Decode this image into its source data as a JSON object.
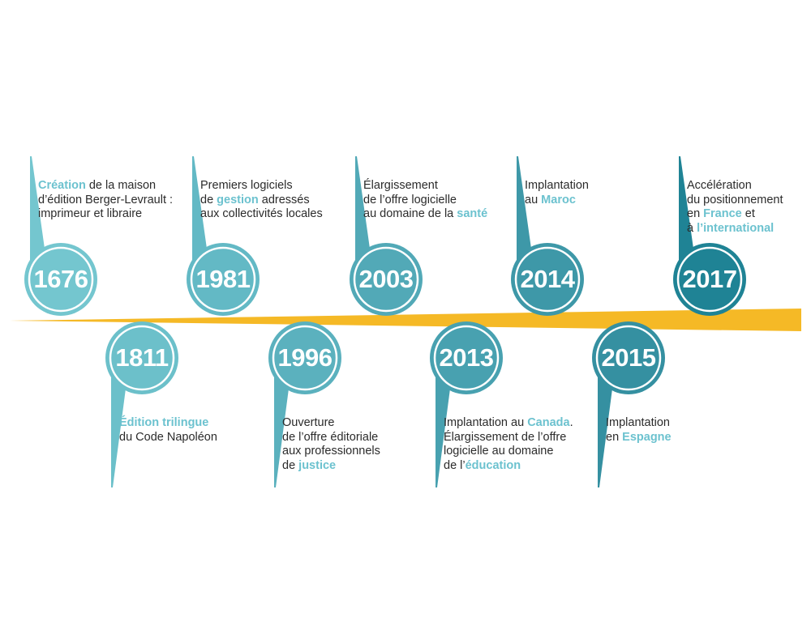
{
  "colors": {
    "band": "#f5b926",
    "label_text": "#2b2b2b",
    "highlight": "#6cc2cf"
  },
  "milestones": [
    {
      "year": "1676",
      "position": "above",
      "color": "#74c6cf",
      "lines": [
        [
          {
            "t": "Création",
            "hl": true
          },
          {
            "t": " de la maison"
          }
        ],
        [
          {
            "t": "d’édition Berger-Levrault :"
          }
        ],
        [
          {
            "t": "imprimeur et libraire"
          }
        ]
      ]
    },
    {
      "year": "1811",
      "position": "below",
      "color": "#6cc0ca",
      "lines": [
        [
          {
            "t": "Édition trilingue",
            "hl": true
          }
        ],
        [
          {
            "t": "du Code Napoléon"
          }
        ]
      ]
    },
    {
      "year": "1981",
      "position": "above",
      "color": "#63b9c5",
      "lines": [
        [
          {
            "t": "Premiers logiciels"
          }
        ],
        [
          {
            "t": "de "
          },
          {
            "t": "gestion",
            "hl": true
          },
          {
            "t": " adressés"
          }
        ],
        [
          {
            "t": "aux collectivités locales"
          }
        ]
      ]
    },
    {
      "year": "1996",
      "position": "below",
      "color": "#5bb1be",
      "lines": [
        [
          {
            "t": "Ouverture"
          }
        ],
        [
          {
            "t": "de l’offre éditoriale"
          }
        ],
        [
          {
            "t": "aux professionnels"
          }
        ],
        [
          {
            "t": "de "
          },
          {
            "t": "justice",
            "hl": true
          }
        ]
      ]
    },
    {
      "year": "2003",
      "position": "above",
      "color": "#52a9b7",
      "lines": [
        [
          {
            "t": "Élargissement"
          }
        ],
        [
          {
            "t": "de l’offre logicielle"
          }
        ],
        [
          {
            "t": "au domaine de la "
          },
          {
            "t": "santé",
            "hl": true
          }
        ]
      ]
    },
    {
      "year": "2013",
      "position": "below",
      "color": "#48a1b0",
      "lines": [
        [
          {
            "t": "Implantation au "
          },
          {
            "t": "Canada",
            "hl": true
          },
          {
            "t": "."
          }
        ],
        [
          {
            "t": "Élargissement de l’offre"
          }
        ],
        [
          {
            "t": "logicielle au domaine"
          }
        ],
        [
          {
            "t": "de l’"
          },
          {
            "t": "éducation",
            "hl": true
          }
        ]
      ]
    },
    {
      "year": "2014",
      "position": "above",
      "color": "#3e98a8",
      "lines": [
        [
          {
            "t": "Implantation"
          }
        ],
        [
          {
            "t": "au "
          },
          {
            "t": "Maroc",
            "hl": true
          }
        ]
      ]
    },
    {
      "year": "2015",
      "position": "below",
      "color": "#3590a1",
      "lines": [
        [
          {
            "t": "Implantation"
          }
        ],
        [
          {
            "t": "en "
          },
          {
            "t": "Espagne",
            "hl": true
          }
        ]
      ]
    },
    {
      "year": "2017",
      "position": "above",
      "color": "#1f8395",
      "lines": [
        [
          {
            "t": "Accélération"
          }
        ],
        [
          {
            "t": "du positionnement"
          }
        ],
        [
          {
            "t": "en "
          },
          {
            "t": "France",
            "hl": true
          },
          {
            "t": " et"
          }
        ],
        [
          {
            "t": "à "
          },
          {
            "t": "l’international",
            "hl": true
          }
        ]
      ]
    }
  ]
}
